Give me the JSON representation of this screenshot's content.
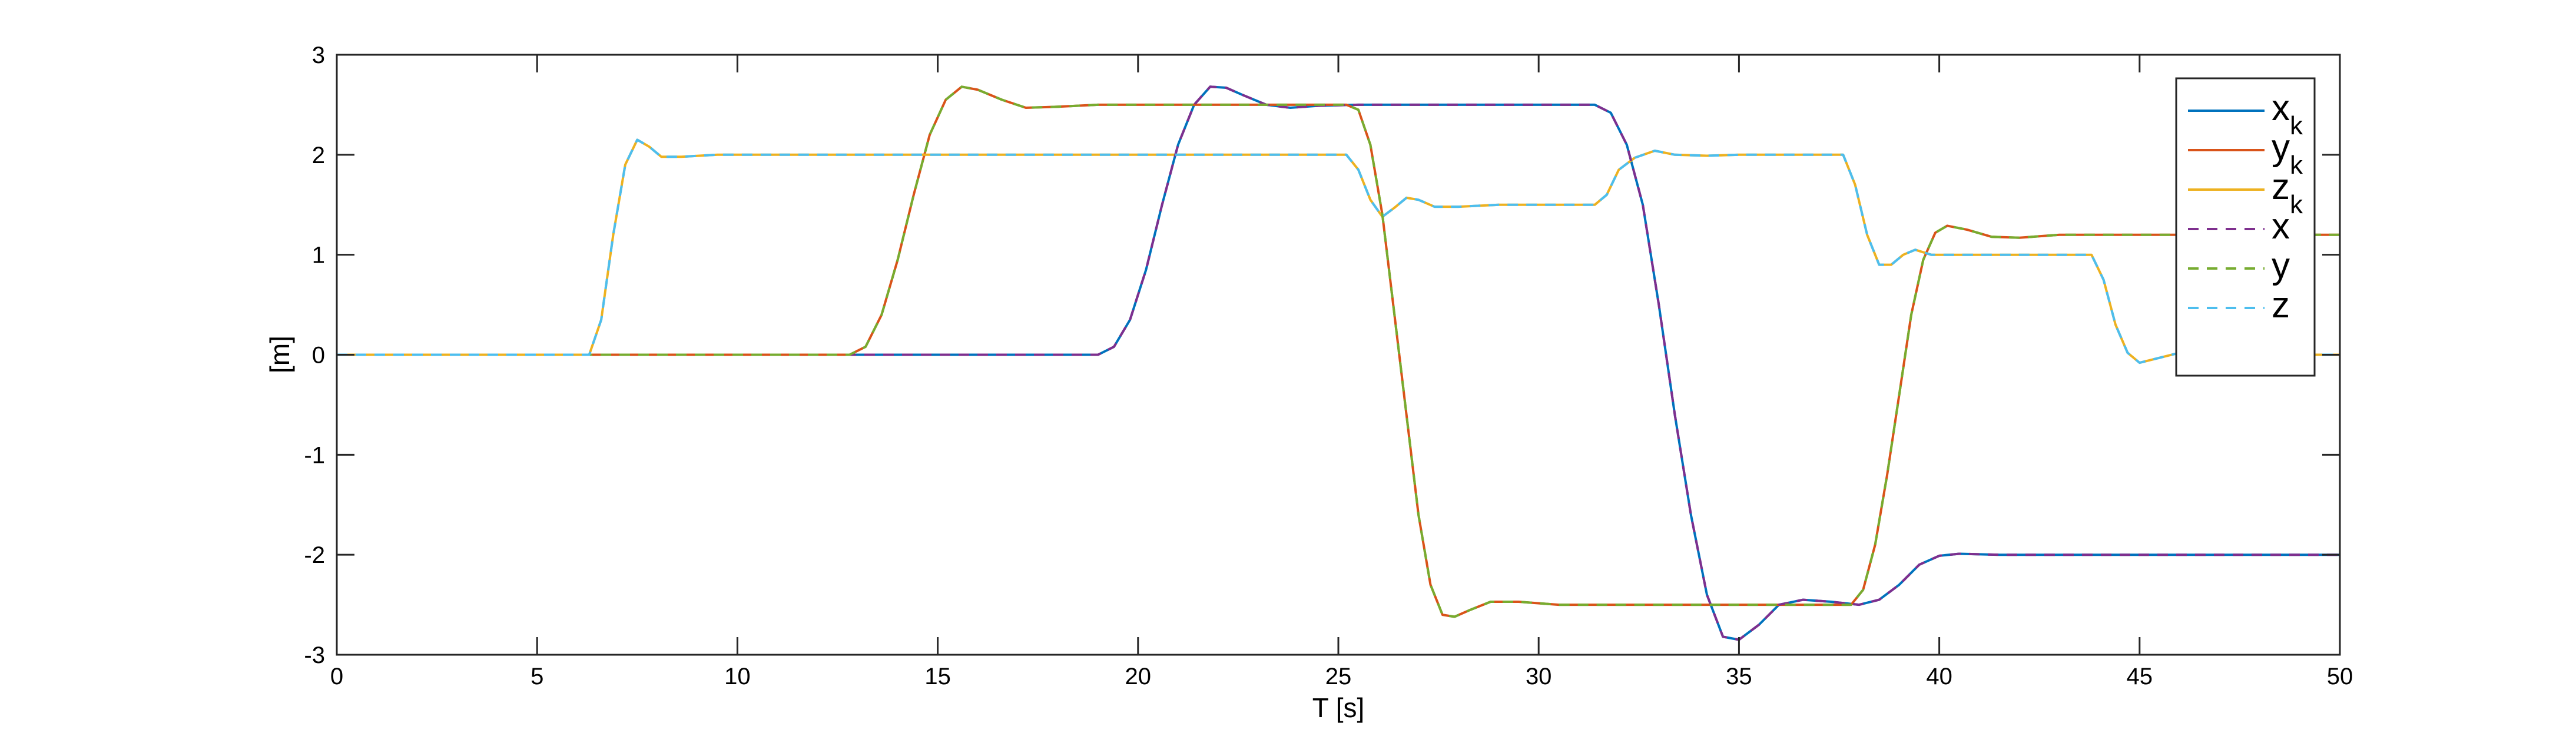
{
  "chart_data": {
    "type": "line",
    "title": "",
    "xlabel": "T [s]",
    "ylabel": "[m]",
    "xlim": [
      0,
      50
    ],
    "ylim": [
      -3,
      3
    ],
    "xticks": [
      0,
      5,
      10,
      15,
      20,
      25,
      30,
      35,
      40,
      45,
      50
    ],
    "yticks": [
      3,
      2,
      1,
      0,
      -1,
      -2,
      -3
    ],
    "grid": false,
    "legend_position": "top-right",
    "series": [
      {
        "name": "x_k",
        "label_main": "x",
        "label_sub": "k",
        "color": "#0072BD",
        "style": "solid",
        "points": [
          [
            0,
            0
          ],
          [
            19,
            0
          ],
          [
            19.4,
            0.08
          ],
          [
            19.8,
            0.35
          ],
          [
            20.2,
            0.85
          ],
          [
            20.6,
            1.5
          ],
          [
            21,
            2.1
          ],
          [
            21.4,
            2.5
          ],
          [
            21.8,
            2.68
          ],
          [
            22.2,
            2.67
          ],
          [
            22.6,
            2.6
          ],
          [
            23.2,
            2.5
          ],
          [
            23.8,
            2.47
          ],
          [
            24.5,
            2.49
          ],
          [
            25.5,
            2.5
          ],
          [
            31.4,
            2.5
          ],
          [
            31.8,
            2.42
          ],
          [
            32.2,
            2.1
          ],
          [
            32.6,
            1.5
          ],
          [
            33,
            0.5
          ],
          [
            33.4,
            -0.6
          ],
          [
            33.8,
            -1.6
          ],
          [
            34.2,
            -2.4
          ],
          [
            34.6,
            -2.82
          ],
          [
            35,
            -2.85
          ],
          [
            35.5,
            -2.7
          ],
          [
            36,
            -2.5
          ],
          [
            36.6,
            -2.45
          ],
          [
            37.3,
            -2.47
          ],
          [
            38,
            -2.5
          ],
          [
            38.5,
            -2.45
          ],
          [
            39,
            -2.3
          ],
          [
            39.5,
            -2.1
          ],
          [
            40,
            -2.01
          ],
          [
            40.5,
            -1.99
          ],
          [
            41.5,
            -2.0
          ],
          [
            50,
            -2.0
          ]
        ]
      },
      {
        "name": "y_k",
        "label_main": "y",
        "label_sub": "k",
        "color": "#D95319",
        "style": "solid",
        "points": [
          [
            0,
            0
          ],
          [
            12.8,
            0
          ],
          [
            13.2,
            0.08
          ],
          [
            13.6,
            0.4
          ],
          [
            14,
            0.95
          ],
          [
            14.4,
            1.6
          ],
          [
            14.8,
            2.2
          ],
          [
            15.2,
            2.55
          ],
          [
            15.6,
            2.68
          ],
          [
            16,
            2.65
          ],
          [
            16.6,
            2.55
          ],
          [
            17.2,
            2.47
          ],
          [
            18,
            2.48
          ],
          [
            19,
            2.5
          ],
          [
            25.2,
            2.5
          ],
          [
            25.5,
            2.45
          ],
          [
            25.8,
            2.1
          ],
          [
            26.1,
            1.4
          ],
          [
            26.4,
            0.4
          ],
          [
            26.7,
            -0.6
          ],
          [
            27,
            -1.6
          ],
          [
            27.3,
            -2.3
          ],
          [
            27.6,
            -2.6
          ],
          [
            27.9,
            -2.62
          ],
          [
            28.3,
            -2.55
          ],
          [
            28.8,
            -2.47
          ],
          [
            29.5,
            -2.47
          ],
          [
            30.5,
            -2.5
          ],
          [
            37.8,
            -2.5
          ],
          [
            38.1,
            -2.35
          ],
          [
            38.4,
            -1.9
          ],
          [
            38.7,
            -1.2
          ],
          [
            39,
            -0.4
          ],
          [
            39.3,
            0.4
          ],
          [
            39.6,
            0.95
          ],
          [
            39.9,
            1.22
          ],
          [
            40.2,
            1.29
          ],
          [
            40.7,
            1.25
          ],
          [
            41.3,
            1.18
          ],
          [
            42,
            1.17
          ],
          [
            43,
            1.2
          ],
          [
            50,
            1.2
          ]
        ]
      },
      {
        "name": "z_k",
        "label_main": "z",
        "label_sub": "k",
        "color": "#EDB120",
        "style": "solid",
        "points": [
          [
            0,
            0
          ],
          [
            6.3,
            0
          ],
          [
            6.6,
            0.35
          ],
          [
            6.9,
            1.2
          ],
          [
            7.2,
            1.9
          ],
          [
            7.5,
            2.15
          ],
          [
            7.8,
            2.08
          ],
          [
            8.1,
            1.98
          ],
          [
            8.6,
            1.98
          ],
          [
            9.5,
            2.0
          ],
          [
            25.2,
            2.0
          ],
          [
            25.5,
            1.85
          ],
          [
            25.8,
            1.55
          ],
          [
            26.1,
            1.38
          ],
          [
            26.4,
            1.47
          ],
          [
            26.7,
            1.57
          ],
          [
            27,
            1.55
          ],
          [
            27.4,
            1.48
          ],
          [
            28,
            1.48
          ],
          [
            29,
            1.5
          ],
          [
            31.4,
            1.5
          ],
          [
            31.7,
            1.6
          ],
          [
            32,
            1.85
          ],
          [
            32.4,
            1.97
          ],
          [
            32.9,
            2.04
          ],
          [
            33.4,
            2.0
          ],
          [
            34.2,
            1.99
          ],
          [
            35,
            2.0
          ],
          [
            37.6,
            2.0
          ],
          [
            37.9,
            1.7
          ],
          [
            38.2,
            1.2
          ],
          [
            38.5,
            0.9
          ],
          [
            38.8,
            0.9
          ],
          [
            39.1,
            1.0
          ],
          [
            39.4,
            1.05
          ],
          [
            39.8,
            1.0
          ],
          [
            40.5,
            1.0
          ],
          [
            43.8,
            1.0
          ],
          [
            44.1,
            0.75
          ],
          [
            44.4,
            0.3
          ],
          [
            44.7,
            0.02
          ],
          [
            45,
            -0.08
          ],
          [
            45.4,
            -0.04
          ],
          [
            45.9,
            0.01
          ],
          [
            46.5,
            0.0
          ],
          [
            50,
            0.0
          ]
        ]
      },
      {
        "name": "x",
        "label_main": "x",
        "label_sub": "",
        "color": "#7E2F8E",
        "style": "dashed",
        "points": [
          [
            0,
            0
          ],
          [
            19,
            0
          ],
          [
            19.4,
            0.08
          ],
          [
            19.8,
            0.35
          ],
          [
            20.2,
            0.85
          ],
          [
            20.6,
            1.5
          ],
          [
            21,
            2.1
          ],
          [
            21.4,
            2.5
          ],
          [
            21.8,
            2.68
          ],
          [
            22.2,
            2.67
          ],
          [
            22.6,
            2.6
          ],
          [
            23.2,
            2.5
          ],
          [
            23.8,
            2.47
          ],
          [
            24.5,
            2.49
          ],
          [
            25.5,
            2.5
          ],
          [
            31.4,
            2.5
          ],
          [
            31.8,
            2.42
          ],
          [
            32.2,
            2.1
          ],
          [
            32.6,
            1.5
          ],
          [
            33,
            0.5
          ],
          [
            33.4,
            -0.6
          ],
          [
            33.8,
            -1.6
          ],
          [
            34.2,
            -2.4
          ],
          [
            34.6,
            -2.82
          ],
          [
            35,
            -2.85
          ],
          [
            35.5,
            -2.7
          ],
          [
            36,
            -2.5
          ],
          [
            36.6,
            -2.45
          ],
          [
            37.3,
            -2.47
          ],
          [
            38,
            -2.5
          ],
          [
            38.5,
            -2.45
          ],
          [
            39,
            -2.3
          ],
          [
            39.5,
            -2.1
          ],
          [
            40,
            -2.01
          ],
          [
            40.5,
            -1.99
          ],
          [
            41.5,
            -2.0
          ],
          [
            50,
            -2.0
          ]
        ]
      },
      {
        "name": "y",
        "label_main": "y",
        "label_sub": "",
        "color": "#77AC30",
        "style": "dashed",
        "points": [
          [
            0,
            0
          ],
          [
            12.8,
            0
          ],
          [
            13.2,
            0.08
          ],
          [
            13.6,
            0.4
          ],
          [
            14,
            0.95
          ],
          [
            14.4,
            1.6
          ],
          [
            14.8,
            2.2
          ],
          [
            15.2,
            2.55
          ],
          [
            15.6,
            2.68
          ],
          [
            16,
            2.65
          ],
          [
            16.6,
            2.55
          ],
          [
            17.2,
            2.47
          ],
          [
            18,
            2.48
          ],
          [
            19,
            2.5
          ],
          [
            25.2,
            2.5
          ],
          [
            25.5,
            2.45
          ],
          [
            25.8,
            2.1
          ],
          [
            26.1,
            1.4
          ],
          [
            26.4,
            0.4
          ],
          [
            26.7,
            -0.6
          ],
          [
            27,
            -1.6
          ],
          [
            27.3,
            -2.3
          ],
          [
            27.6,
            -2.6
          ],
          [
            27.9,
            -2.62
          ],
          [
            28.3,
            -2.55
          ],
          [
            28.8,
            -2.47
          ],
          [
            29.5,
            -2.47
          ],
          [
            30.5,
            -2.5
          ],
          [
            37.8,
            -2.5
          ],
          [
            38.1,
            -2.35
          ],
          [
            38.4,
            -1.9
          ],
          [
            38.7,
            -1.2
          ],
          [
            39,
            -0.4
          ],
          [
            39.3,
            0.4
          ],
          [
            39.6,
            0.95
          ],
          [
            39.9,
            1.22
          ],
          [
            40.2,
            1.29
          ],
          [
            40.7,
            1.25
          ],
          [
            41.3,
            1.18
          ],
          [
            42,
            1.17
          ],
          [
            43,
            1.2
          ],
          [
            50,
            1.2
          ]
        ]
      },
      {
        "name": "z",
        "label_main": "z",
        "label_sub": "",
        "color": "#4DBEEE",
        "style": "dashed",
        "points": [
          [
            0,
            0
          ],
          [
            6.3,
            0
          ],
          [
            6.6,
            0.35
          ],
          [
            6.9,
            1.2
          ],
          [
            7.2,
            1.9
          ],
          [
            7.5,
            2.15
          ],
          [
            7.8,
            2.08
          ],
          [
            8.1,
            1.98
          ],
          [
            8.6,
            1.98
          ],
          [
            9.5,
            2.0
          ],
          [
            25.2,
            2.0
          ],
          [
            25.5,
            1.85
          ],
          [
            25.8,
            1.55
          ],
          [
            26.1,
            1.38
          ],
          [
            26.4,
            1.47
          ],
          [
            26.7,
            1.57
          ],
          [
            27,
            1.55
          ],
          [
            27.4,
            1.48
          ],
          [
            28,
            1.48
          ],
          [
            29,
            1.5
          ],
          [
            31.4,
            1.5
          ],
          [
            31.7,
            1.6
          ],
          [
            32,
            1.85
          ],
          [
            32.4,
            1.97
          ],
          [
            32.9,
            2.04
          ],
          [
            33.4,
            2.0
          ],
          [
            34.2,
            1.99
          ],
          [
            35,
            2.0
          ],
          [
            37.6,
            2.0
          ],
          [
            37.9,
            1.7
          ],
          [
            38.2,
            1.2
          ],
          [
            38.5,
            0.9
          ],
          [
            38.8,
            0.9
          ],
          [
            39.1,
            1.0
          ],
          [
            39.4,
            1.05
          ],
          [
            39.8,
            1.0
          ],
          [
            40.5,
            1.0
          ],
          [
            43.8,
            1.0
          ],
          [
            44.1,
            0.75
          ],
          [
            44.4,
            0.3
          ],
          [
            44.7,
            0.02
          ],
          [
            45,
            -0.08
          ],
          [
            45.4,
            -0.04
          ],
          [
            45.9,
            0.01
          ],
          [
            46.5,
            0.0
          ],
          [
            50,
            0.0
          ]
        ]
      }
    ]
  }
}
